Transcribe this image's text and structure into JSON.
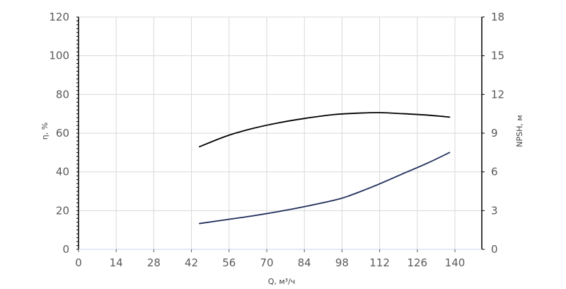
{
  "chart_data": {
    "type": "line",
    "xlabel": "Q, м³/ч",
    "ylabel_left": "η, %",
    "ylabel_right": "NPSH, м",
    "xlim": [
      0,
      150
    ],
    "ylim_left": [
      0,
      120
    ],
    "ylim_right": [
      0,
      18
    ],
    "x_ticks": [
      0,
      14,
      28,
      42,
      56,
      70,
      84,
      98,
      112,
      126,
      140
    ],
    "y_left_ticks": [
      0,
      20,
      40,
      60,
      80,
      100,
      120
    ],
    "y_right_ticks": [
      0,
      3,
      6,
      9,
      12,
      15,
      18
    ],
    "grid": true,
    "legend": "none",
    "series": [
      {
        "axis": "left",
        "color": "#000000",
        "x": [
          45,
          55,
          65,
          75,
          85,
          95,
          105,
          112,
          120,
          130,
          138
        ],
        "y": [
          53,
          58.5,
          62.5,
          65.5,
          67.8,
          69.6,
          70.4,
          70.6,
          70.1,
          69.3,
          68.3
        ]
      },
      {
        "axis": "right",
        "color": "#1f2d5a",
        "x": [
          45,
          55,
          65,
          75,
          85,
          95,
          100,
          110,
          120,
          130,
          138
        ],
        "y": [
          2.0,
          2.3,
          2.6,
          2.95,
          3.35,
          3.8,
          4.1,
          4.9,
          5.8,
          6.7,
          7.5
        ]
      }
    ]
  }
}
